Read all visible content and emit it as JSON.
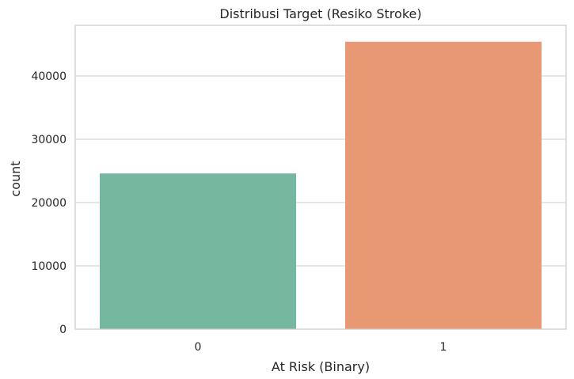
{
  "chart_data": {
    "type": "bar",
    "title": "Distribusi Target (Resiko Stroke)",
    "xlabel": "At Risk (Binary)",
    "ylabel": "count",
    "categories": [
      "0",
      "1"
    ],
    "values": [
      24600,
      45400
    ],
    "colors": [
      "#76b7a0",
      "#e99874"
    ],
    "ylim": [
      0,
      48000
    ],
    "yticks": [
      0,
      10000,
      20000,
      30000,
      40000
    ],
    "ytick_labels": [
      "0",
      "10000",
      "20000",
      "30000",
      "40000"
    ],
    "grid": "y",
    "legend": "none"
  }
}
